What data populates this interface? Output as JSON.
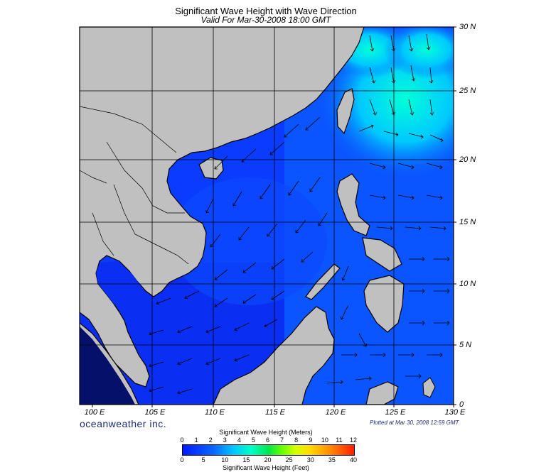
{
  "title": "Significant Wave Height with Wave Direction",
  "subtitle": "Valid For Mar-30-2008 18:00 GMT",
  "map": {
    "region": "South China Sea",
    "lon_range": [
      99,
      130
    ],
    "lat_range": [
      0,
      30
    ],
    "gridlines": true,
    "lat_labels": [
      "30 N",
      "25 N",
      "20 N",
      "15 N",
      "10 N",
      "5 N",
      "0"
    ],
    "lon_labels": [
      "100 E",
      "105 E",
      "110 E",
      "115 E",
      "120 E",
      "125 E",
      "130 E"
    ],
    "arrows": "wave direction vectors",
    "colors": {
      "land": "#c0c0c0",
      "sea_low": "#0019ff",
      "sea_mid": "#0a66ff",
      "sea_high": "#00ffc8",
      "coast": "#000000"
    }
  },
  "brand": "oceanweather inc.",
  "plotted": "Plotted at Mar 30, 2008 12:59 GMT",
  "colorbar": {
    "title_meters": "Significant Wave Height (Meters)",
    "title_feet": "Significant Wave Height (Feet)",
    "meters_ticks": [
      "0",
      "1",
      "2",
      "3",
      "4",
      "5",
      "6",
      "7",
      "8",
      "9",
      "10",
      "11",
      "12"
    ],
    "feet_ticks": [
      "0",
      "5",
      "10",
      "15",
      "20",
      "25",
      "30",
      "35",
      "40"
    ]
  }
}
